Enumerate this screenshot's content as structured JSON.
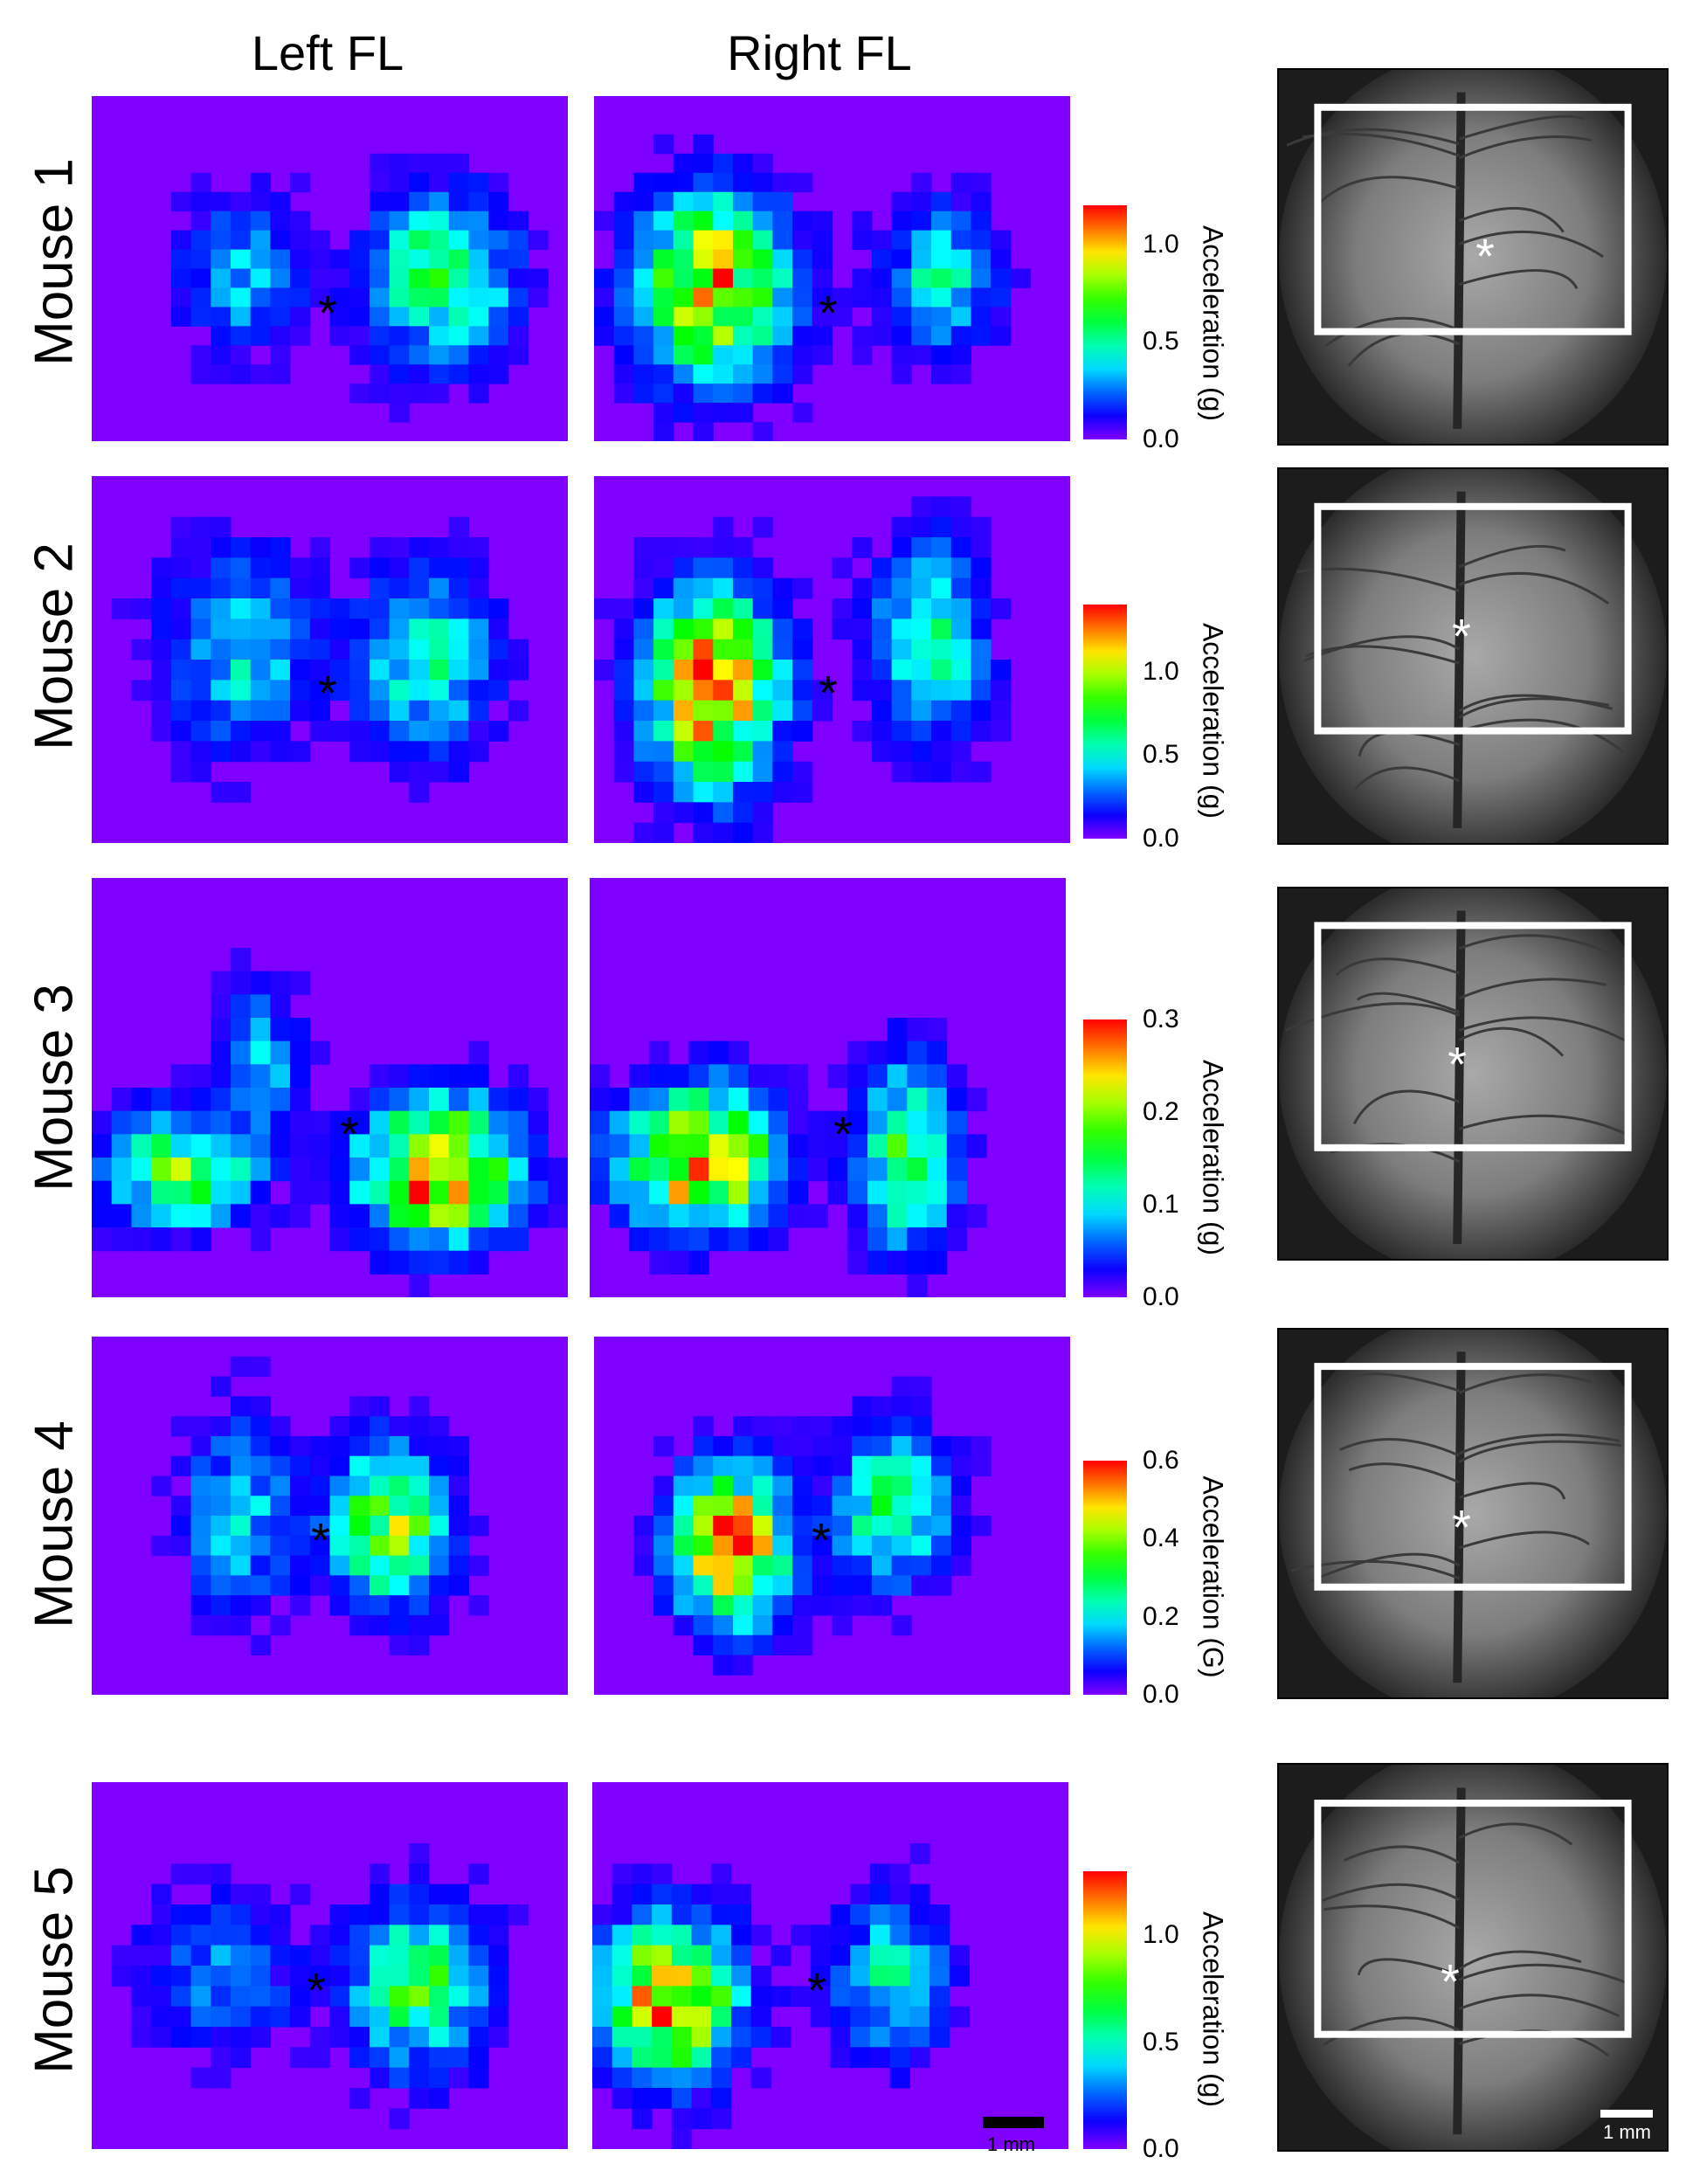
{
  "column_titles": {
    "left": "Left FL",
    "right": "Right FL"
  },
  "colors": {
    "low": "#7f00ff",
    "high": "#ff0000"
  },
  "colormap": "rainbow",
  "rows": [
    {
      "label": "Mouse 1",
      "cbar_ticks": [
        "0.0",
        "0.5",
        "1.0"
      ],
      "cbar_max": 1.2,
      "cbar_label": "Acceleration (g)"
    },
    {
      "label": "Mouse 2",
      "cbar_ticks": [
        "0.0",
        "0.5",
        "1.0"
      ],
      "cbar_max": 1.4,
      "cbar_label": "Acceleration (g)"
    },
    {
      "label": "Mouse 3",
      "cbar_ticks": [
        "0.0",
        "0.1",
        "0.2",
        "0.3"
      ],
      "cbar_max": 0.3,
      "cbar_label": "Acceleration (g)"
    },
    {
      "label": "Mouse 4",
      "cbar_ticks": [
        "0.0",
        "0.2",
        "0.4",
        "0.6"
      ],
      "cbar_max": 0.6,
      "cbar_label": "Acceleration (G)"
    },
    {
      "label": "Mouse 5",
      "cbar_ticks": [
        "0.0",
        "0.5",
        "1.0"
      ],
      "cbar_max": 1.3,
      "cbar_label": "Acceleration (g)"
    }
  ],
  "markers": {
    "center": "*"
  },
  "scalebars": {
    "map": "1 mm",
    "photo": "1 mm"
  },
  "chart_data": {
    "type": "heatmap",
    "grid": "24 columns x 18 rows per map (approximate)",
    "value_unit": "g",
    "maps": [
      {
        "mouse": "Mouse 1",
        "side": "Left FL",
        "hotspots": [
          {
            "col": 7,
            "row": 9,
            "peak": 0.35,
            "rx": 3,
            "ry": 4
          },
          {
            "col": 17,
            "row": 9,
            "peak": 0.6,
            "rx": 4,
            "ry": 4.5
          }
        ]
      },
      {
        "mouse": "Mouse 1",
        "side": "Right FL",
        "hotspots": [
          {
            "col": 5.5,
            "row": 9.5,
            "peak": 1.05,
            "rx": 4,
            "ry": 5
          },
          {
            "col": 17,
            "row": 9,
            "peak": 0.45,
            "rx": 3,
            "ry": 4
          }
        ]
      },
      {
        "mouse": "Mouse 2",
        "side": "Left FL",
        "hotspots": [
          {
            "col": 7,
            "row": 8,
            "peak": 0.45,
            "rx": 4,
            "ry": 5
          },
          {
            "col": 16.5,
            "row": 8.5,
            "peak": 0.6,
            "rx": 3.5,
            "ry": 4.5
          }
        ]
      },
      {
        "mouse": "Mouse 2",
        "side": "Right FL",
        "hotspots": [
          {
            "col": 5.5,
            "row": 10,
            "peak": 1.3,
            "rx": 3.5,
            "ry": 5
          },
          {
            "col": 16.5,
            "row": 7.5,
            "peak": 0.6,
            "rx": 3,
            "ry": 5
          }
        ]
      },
      {
        "mouse": "Mouse 3",
        "side": "Left FL",
        "hotspots": [
          {
            "col": 4,
            "row": 12,
            "peak": 0.18,
            "rx": 4,
            "ry": 2.5
          },
          {
            "col": 17,
            "row": 12,
            "peak": 0.3,
            "rx": 4,
            "ry": 3
          },
          {
            "col": 8,
            "row": 7,
            "peak": 0.1,
            "rx": 2,
            "ry": 3
          }
        ]
      },
      {
        "mouse": "Mouse 3",
        "side": "Right FL",
        "hotspots": [
          {
            "col": 5,
            "row": 11.5,
            "peak": 0.3,
            "rx": 4,
            "ry": 3
          },
          {
            "col": 15.5,
            "row": 11.5,
            "peak": 0.18,
            "rx": 2.5,
            "ry": 4
          }
        ]
      },
      {
        "mouse": "Mouse 4",
        "side": "Left FL",
        "hotspots": [
          {
            "col": 7,
            "row": 8.5,
            "peak": 0.2,
            "rx": 3,
            "ry": 5
          },
          {
            "col": 14.5,
            "row": 9,
            "peak": 0.42,
            "rx": 3,
            "ry": 4
          }
        ]
      },
      {
        "mouse": "Mouse 4",
        "side": "Right FL",
        "hotspots": [
          {
            "col": 6.5,
            "row": 10,
            "peak": 0.6,
            "rx": 3,
            "ry": 4
          },
          {
            "col": 14.5,
            "row": 8,
            "peak": 0.3,
            "rx": 3,
            "ry": 4
          }
        ]
      },
      {
        "mouse": "Mouse 5",
        "side": "Left FL",
        "hotspots": [
          {
            "col": 6,
            "row": 9,
            "peak": 0.3,
            "rx": 4,
            "ry": 4
          },
          {
            "col": 16,
            "row": 9.5,
            "peak": 0.75,
            "rx": 3.5,
            "ry": 4
          }
        ]
      },
      {
        "mouse": "Mouse 5",
        "side": "Right FL",
        "hotspots": [
          {
            "col": 3.5,
            "row": 10,
            "peak": 1.25,
            "rx": 3.5,
            "ry": 4
          },
          {
            "col": 14.5,
            "row": 9,
            "peak": 0.5,
            "rx": 3,
            "ry": 4
          }
        ]
      }
    ]
  }
}
